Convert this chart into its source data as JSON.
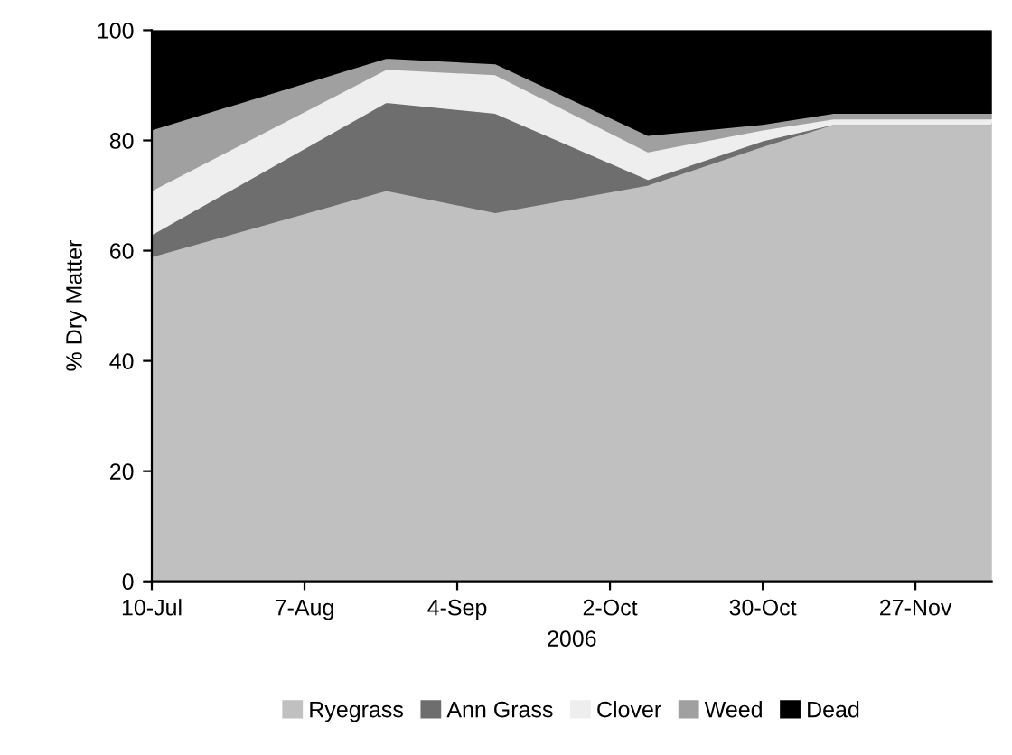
{
  "chart_data": {
    "type": "area",
    "stacked": true,
    "xlabel": "2006",
    "ylabel": "% Dry Matter",
    "x": [
      "2006-07-10",
      "2006-08-22",
      "2006-09-11",
      "2006-10-09",
      "2006-10-30",
      "2006-11-12",
      "2006-12-11"
    ],
    "series": [
      {
        "name": "Ryegrass",
        "color": "#c0c0c0",
        "values": [
          59,
          71,
          67,
          72,
          79,
          83,
          83
        ]
      },
      {
        "name": "Ann Grass",
        "color": "#6e6e6e",
        "values": [
          4,
          16,
          18,
          1,
          1,
          0,
          0
        ]
      },
      {
        "name": "Clover",
        "color": "#eeeeee",
        "values": [
          8,
          6,
          7,
          5,
          2,
          1,
          1
        ]
      },
      {
        "name": "Weed",
        "color": "#a0a0a0",
        "values": [
          11,
          2,
          2,
          3,
          1,
          1,
          1
        ]
      },
      {
        "name": "Dead",
        "color": "#000000",
        "values": [
          18,
          5,
          6,
          19,
          17,
          15,
          15
        ]
      }
    ],
    "xlim": [
      "2006-07-10",
      "2006-12-11"
    ],
    "xticks": [
      {
        "value": "2006-07-10",
        "label": "10-Jul"
      },
      {
        "value": "2006-08-07",
        "label": "7-Aug"
      },
      {
        "value": "2006-09-04",
        "label": "4-Sep"
      },
      {
        "value": "2006-10-02",
        "label": "2-Oct"
      },
      {
        "value": "2006-10-30",
        "label": "30-Oct"
      },
      {
        "value": "2006-11-27",
        "label": "27-Nov"
      }
    ],
    "ylim": [
      0,
      100
    ],
    "yticks": [
      0,
      20,
      40,
      60,
      80,
      100
    ],
    "grid": false,
    "legend": "bottom"
  }
}
